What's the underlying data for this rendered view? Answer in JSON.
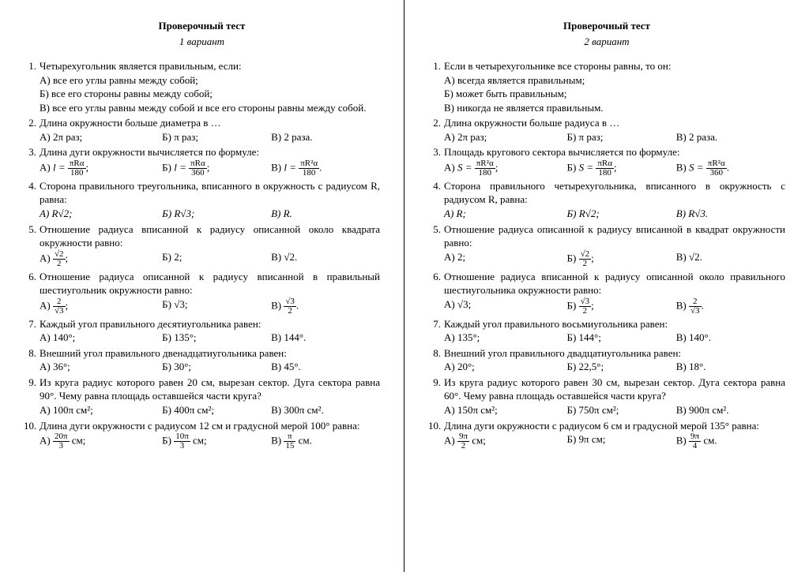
{
  "left": {
    "title": "Проверочный тест",
    "subtitle": "1 вариант",
    "q1": {
      "text": "Четырехугольник является правильным, если:",
      "a": "А) все его углы равны между собой;",
      "b": "Б) все его стороны равны между собой;",
      "c": "В)  все его углы равны между собой и все его стороны равны между собой."
    },
    "q2": {
      "text": "Длина окружности больше диаметра в …",
      "a": "А) 2π раз;",
      "b": "Б) π раз;",
      "c": "В) 2 раза."
    },
    "q3": {
      "text": "Длина дуги окружности вычисляется по формуле:",
      "a_pre": "А) ",
      "a_eq": "l = ",
      "a_num": "πRα",
      "a_den": "180",
      "a_suf": ";",
      "b_pre": "Б) ",
      "b_eq": "l = ",
      "b_num": "πRα",
      "b_den": "360",
      "b_suf": ";",
      "c_pre": "В) ",
      "c_eq": "l = ",
      "c_num": "πR²α",
      "c_den": "180",
      "c_suf": "."
    },
    "q4": {
      "text": "Сторона правильного треугольника, вписанного в окружность с радиусом R, равна:",
      "a": "А) R√2;",
      "b": "Б) R√3;",
      "c": "В) R."
    },
    "q5": {
      "text": "Отношение радиуса вписанной к радиусу описанной около квадрата окружности равно:",
      "a_pre": "А) ",
      "a_num": "√2",
      "a_den": "2",
      "a_suf": ";",
      "b": "Б) 2;",
      "c": "В) √2."
    },
    "q6": {
      "text": "Отношение радиуса описанной к радиусу вписанной в правильный шестиугольник окружности равно:",
      "a_pre": "А) ",
      "a_num": "2",
      "a_den": "√3",
      "a_suf": ";",
      "b": "Б) √3;",
      "c_pre": "В) ",
      "c_num": "√3",
      "c_den": "2",
      "c_suf": "."
    },
    "q7": {
      "text": "Каждый угол правильного десятиугольника равен:",
      "a": "А) 140°;",
      "b": "Б) 135°;",
      "c": "В) 144°."
    },
    "q8": {
      "text": "Внешний угол правильного двенадцатиугольника равен:",
      "a": "А) 36°;",
      "b": "Б) 30°;",
      "c": "В) 45°."
    },
    "q9": {
      "text": "Из круга радиус которого равен 20 см, вырезан сектор. Дуга сектора равна 90°. Чему равна площадь оставшейся части круга?",
      "a": "А) 100π см²;",
      "b": "Б) 400π см²;",
      "c": "В) 300π см²."
    },
    "q10": {
      "text": "Длина дуги окружности с радиусом 12 см и градусной мерой 100° равна:",
      "a_pre": "А) ",
      "a_num": "20π",
      "a_den": "3",
      "a_suf": " см;",
      "b_pre": "Б) ",
      "b_num": "10π",
      "b_den": "3",
      "b_suf": " см;",
      "c_pre": "В) ",
      "c_num": "π",
      "c_den": "15",
      "c_suf": " см."
    }
  },
  "right": {
    "title": "Проверочный тест",
    "subtitle": "2 вариант",
    "q1": {
      "text": "Если в четырехугольнике все стороны равны, то он:",
      "a": "А) всегда является правильным;",
      "b": "Б) может быть правильным;",
      "c": "В)  никогда не является правильным."
    },
    "q2": {
      "text": "Длина окружности больше радиуса в …",
      "a": "А) 2π раз;",
      "b": "Б) π раз;",
      "c": "В) 2 раза."
    },
    "q3": {
      "text": "Площадь кругового сектора вычисляется по формуле:",
      "a_pre": "А) ",
      "a_eq": "S = ",
      "a_num": "πR²α",
      "a_den": "180",
      "a_suf": ";",
      "b_pre": "Б) ",
      "b_eq": "S = ",
      "b_num": "πRα",
      "b_den": "180",
      "b_suf": ";",
      "c_pre": "В) ",
      "c_eq": "S = ",
      "c_num": "πR²α",
      "c_den": "360",
      "c_suf": "."
    },
    "q4": {
      "text": "Сторона правильного четырехугольника, вписанного в окружность с радиусом R, равна:",
      "a": "А) R;",
      "b": "Б) R√2;",
      "c": "В) R√3."
    },
    "q5": {
      "text": "Отношение радиуса описанной к радиусу вписанной в квадрат окружности равно:",
      "a": "А) 2;",
      "b_pre": "Б) ",
      "b_num": "√2",
      "b_den": "2",
      "b_suf": ";",
      "c": "В) √2."
    },
    "q6": {
      "text": "Отношение радиуса вписанной к радиусу описанной около правильного шестиугольника окружности равно:",
      "a": "А) √3;",
      "b_pre": "Б) ",
      "b_num": "√3",
      "b_den": "2",
      "b_suf": ";",
      "c_pre": "В) ",
      "c_num": "2",
      "c_den": "√3",
      "c_suf": "."
    },
    "q7": {
      "text": "Каждый угол правильного восьмиугольника равен:",
      "a": "А) 135°;",
      "b": "Б) 144°;",
      "c": "В) 140°."
    },
    "q8": {
      "text": "Внешний угол правильного двадцатиугольника равен:",
      "a": "А) 20°;",
      "b": "Б) 22,5°;",
      "c": "В) 18°."
    },
    "q9": {
      "text": "Из круга радиус которого равен 30 см, вырезан сектор. Дуга сектора равна 60°. Чему равна площадь оставшейся части круга?",
      "a": "А) 150π см²;",
      "b": "Б) 750π см²;",
      "c": "В) 900π см²."
    },
    "q10": {
      "text": "Длина дуги окружности с радиусом 6 см и градусной мерой 135° равна:",
      "a_pre": "А) ",
      "a_num": "9π",
      "a_den": "2",
      "a_suf": " см;",
      "b": "Б) 9π см;",
      "c_pre": "В) ",
      "c_num": "9π",
      "c_den": "4",
      "c_suf": " см."
    }
  }
}
